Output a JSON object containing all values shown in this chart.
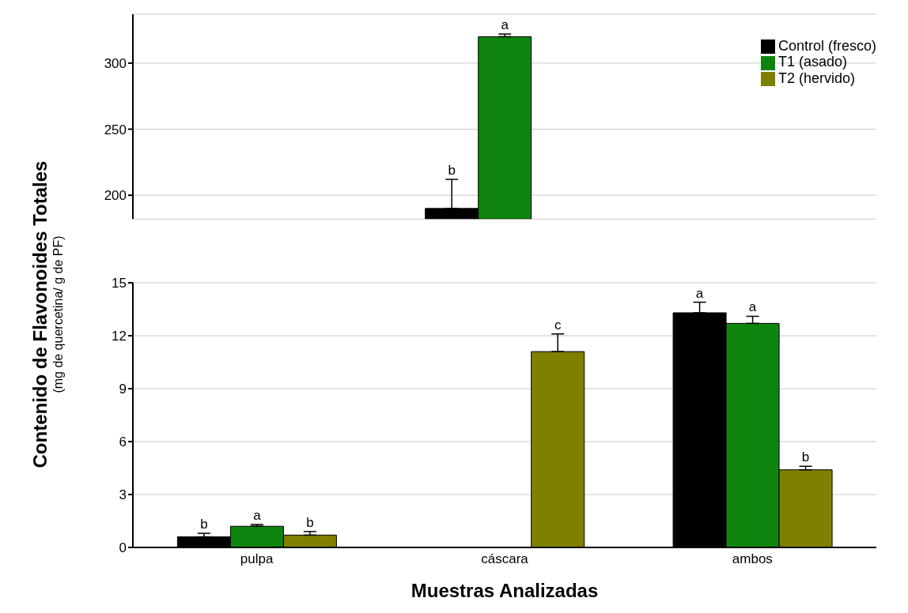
{
  "chart_data": [
    {
      "type": "bar",
      "categories": [
        null,
        null,
        null
      ],
      "series": [
        {
          "name": "Control (fresco)",
          "color": "#000000",
          "values": [
            null,
            190,
            null
          ],
          "errors": [
            null,
            22,
            null
          ],
          "value_labels": [
            null,
            "b",
            null
          ]
        },
        {
          "name": "T1 (asado)",
          "color": "#0f840f",
          "values": [
            null,
            320,
            null
          ],
          "errors": [
            null,
            2,
            null
          ],
          "value_labels": [
            null,
            "a",
            null
          ]
        },
        {
          "name": "T2 (hervido)",
          "color": "#7f7f00",
          "values": [
            null,
            null,
            null
          ]
        }
      ],
      "ylim": [
        182,
        337
      ],
      "yticks": [
        200,
        250,
        300
      ],
      "grid": "y",
      "legend": "top right",
      "tick_labels": "y"
    },
    {
      "type": "bar",
      "xlabel": "Muestras Analizadas",
      "ylabel": "Contenido de Flavonoides Totales",
      "annotations": [
        "(mg de quercetina/ g de PF)"
      ],
      "categories": [
        "pulpa",
        "cáscara",
        "ambos"
      ],
      "series": [
        {
          "color": "#000000",
          "values": [
            0.6,
            null,
            13.3
          ],
          "errors": [
            0.2,
            null,
            0.6
          ],
          "value_labels": [
            "b",
            null,
            "a"
          ]
        },
        {
          "color": "#0f840f",
          "values": [
            1.2,
            null,
            12.7
          ],
          "errors": [
            0.1,
            null,
            0.4
          ],
          "value_labels": [
            "a",
            null,
            "a"
          ]
        },
        {
          "color": "#7f7f00",
          "values": [
            0.7,
            11.1,
            4.4
          ],
          "errors": [
            0.2,
            1.0,
            0.2
          ],
          "value_labels": [
            "b",
            "c",
            "b"
          ]
        }
      ],
      "ylim": [
        0,
        15
      ],
      "yticks": [
        0,
        3,
        6,
        9,
        12,
        15
      ],
      "grid": "y",
      "legend": false
    }
  ]
}
